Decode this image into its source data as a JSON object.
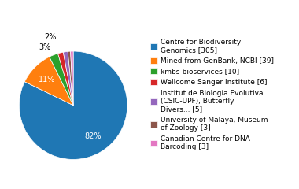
{
  "chart_data": {
    "type": "pie",
    "categories": [
      "Centre for Biodiversity\nGenomics [305]",
      "Mined from GenBank, NCBI [39]",
      "kmbs-bioservices [10]",
      "Wellcome Sanger Institute [6]",
      "Institut de Biologia Evolutiva\n(CSIC-UPF), Butterfly\nDivers... [5]",
      "University of Malaya, Museum\nof Zoology [3]",
      "Canadian Centre for DNA\nBarcoding [3]"
    ],
    "values": [
      82.21,
      10.51,
      2.7,
      1.62,
      1.35,
      0.81,
      0.81
    ],
    "value_labels": [
      "82%",
      "11%",
      "3%",
      "2%",
      null,
      null,
      null
    ],
    "data_labels": true,
    "legend": "center left"
  }
}
